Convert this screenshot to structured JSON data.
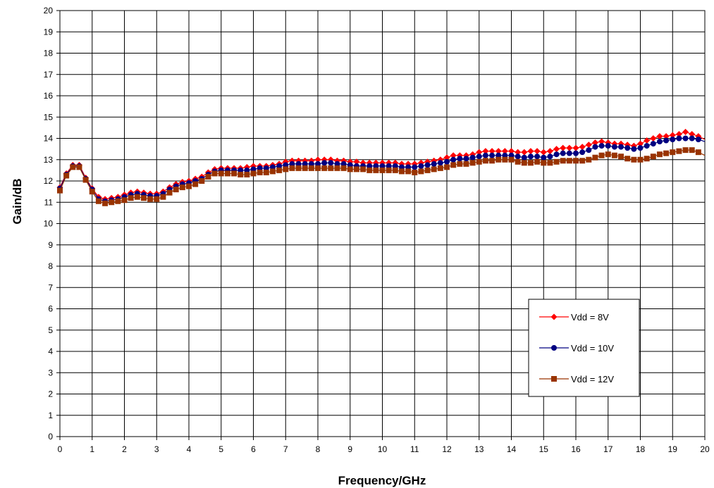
{
  "chart_data": {
    "type": "line",
    "title": "",
    "xlabel": "Frequency/GHz",
    "ylabel": "Gain/dB",
    "xlim": [
      0,
      20
    ],
    "ylim": [
      0,
      20
    ],
    "xticks": [
      0,
      1,
      2,
      3,
      4,
      5,
      6,
      7,
      8,
      9,
      10,
      11,
      12,
      13,
      14,
      15,
      16,
      17,
      18,
      19,
      20
    ],
    "yticks": [
      0,
      1,
      2,
      3,
      4,
      5,
      6,
      7,
      8,
      9,
      10,
      11,
      12,
      13,
      14,
      15,
      16,
      17,
      18,
      19,
      20
    ],
    "grid": true,
    "legend_position": "right",
    "series": [
      {
        "name": "Vdd = 8V",
        "color": "#ff0000",
        "marker": "diamond",
        "x": [
          0,
          0.2,
          0.4,
          0.6,
          0.8,
          1.0,
          1.2,
          1.4,
          1.6,
          1.8,
          2.0,
          2.2,
          2.4,
          2.6,
          2.8,
          3.0,
          3.2,
          3.4,
          3.6,
          3.8,
          4.0,
          4.2,
          4.4,
          4.6,
          4.8,
          5.0,
          5.2,
          5.4,
          5.6,
          5.8,
          6.0,
          6.2,
          6.4,
          6.6,
          6.8,
          7.0,
          7.2,
          7.4,
          7.6,
          7.8,
          8.0,
          8.2,
          8.4,
          8.6,
          8.8,
          9.0,
          9.2,
          9.4,
          9.6,
          9.8,
          10.0,
          10.2,
          10.4,
          10.6,
          10.8,
          11.0,
          11.2,
          11.4,
          11.6,
          11.8,
          12.0,
          12.2,
          12.4,
          12.6,
          12.8,
          13.0,
          13.2,
          13.4,
          13.6,
          13.8,
          14.0,
          14.2,
          14.4,
          14.6,
          14.8,
          15.0,
          15.2,
          15.4,
          15.6,
          15.8,
          16.0,
          16.2,
          16.4,
          16.6,
          16.8,
          17.0,
          17.2,
          17.4,
          17.6,
          17.8,
          18.0,
          18.2,
          18.4,
          18.6,
          18.8,
          19.0,
          19.2,
          19.4,
          19.6,
          19.8,
          20.0
        ],
        "y": [
          11.7,
          12.35,
          12.75,
          12.75,
          12.15,
          11.65,
          11.25,
          11.15,
          11.2,
          11.25,
          11.35,
          11.45,
          11.5,
          11.45,
          11.4,
          11.4,
          11.5,
          11.7,
          11.85,
          11.95,
          12.0,
          12.1,
          12.2,
          12.4,
          12.55,
          12.6,
          12.6,
          12.6,
          12.6,
          12.65,
          12.7,
          12.7,
          12.7,
          12.75,
          12.8,
          12.9,
          12.95,
          12.95,
          12.95,
          12.95,
          13.0,
          13.0,
          13.0,
          12.95,
          12.95,
          12.9,
          12.9,
          12.85,
          12.85,
          12.85,
          12.85,
          12.85,
          12.85,
          12.8,
          12.8,
          12.8,
          12.85,
          12.9,
          12.95,
          13.0,
          13.1,
          13.2,
          13.2,
          13.2,
          13.25,
          13.35,
          13.4,
          13.4,
          13.4,
          13.4,
          13.4,
          13.35,
          13.35,
          13.4,
          13.4,
          13.35,
          13.4,
          13.5,
          13.55,
          13.55,
          13.55,
          13.6,
          13.7,
          13.8,
          13.85,
          13.8,
          13.75,
          13.75,
          13.7,
          13.65,
          13.75,
          13.9,
          14.0,
          14.1,
          14.1,
          14.15,
          14.2,
          14.3,
          14.2,
          14.1,
          13.95
        ]
      },
      {
        "name": "Vdd = 10V",
        "color": "#000080",
        "marker": "circle",
        "x": [
          0,
          0.2,
          0.4,
          0.6,
          0.8,
          1.0,
          1.2,
          1.4,
          1.6,
          1.8,
          2.0,
          2.2,
          2.4,
          2.6,
          2.8,
          3.0,
          3.2,
          3.4,
          3.6,
          3.8,
          4.0,
          4.2,
          4.4,
          4.6,
          4.8,
          5.0,
          5.2,
          5.4,
          5.6,
          5.8,
          6.0,
          6.2,
          6.4,
          6.6,
          6.8,
          7.0,
          7.2,
          7.4,
          7.6,
          7.8,
          8.0,
          8.2,
          8.4,
          8.6,
          8.8,
          9.0,
          9.2,
          9.4,
          9.6,
          9.8,
          10.0,
          10.2,
          10.4,
          10.6,
          10.8,
          11.0,
          11.2,
          11.4,
          11.6,
          11.8,
          12.0,
          12.2,
          12.4,
          12.6,
          12.8,
          13.0,
          13.2,
          13.4,
          13.6,
          13.8,
          14.0,
          14.2,
          14.4,
          14.6,
          14.8,
          15.0,
          15.2,
          15.4,
          15.6,
          15.8,
          16.0,
          16.2,
          16.4,
          16.6,
          16.8,
          17.0,
          17.2,
          17.4,
          17.6,
          17.8,
          18.0,
          18.2,
          18.4,
          18.6,
          18.8,
          19.0,
          19.2,
          19.4,
          19.6,
          19.8,
          20.0
        ],
        "y": [
          11.65,
          12.3,
          12.7,
          12.7,
          12.1,
          11.6,
          11.15,
          11.05,
          11.1,
          11.15,
          11.25,
          11.35,
          11.4,
          11.35,
          11.3,
          11.3,
          11.4,
          11.6,
          11.75,
          11.85,
          11.9,
          12.0,
          12.1,
          12.3,
          12.45,
          12.5,
          12.5,
          12.5,
          12.5,
          12.5,
          12.55,
          12.6,
          12.6,
          12.65,
          12.7,
          12.75,
          12.8,
          12.8,
          12.8,
          12.8,
          12.8,
          12.85,
          12.85,
          12.8,
          12.8,
          12.75,
          12.7,
          12.7,
          12.7,
          12.7,
          12.7,
          12.7,
          12.7,
          12.65,
          12.65,
          12.65,
          12.7,
          12.75,
          12.8,
          12.85,
          12.9,
          13.0,
          13.05,
          13.05,
          13.1,
          13.15,
          13.2,
          13.2,
          13.2,
          13.2,
          13.2,
          13.15,
          13.1,
          13.15,
          13.15,
          13.1,
          13.15,
          13.25,
          13.3,
          13.3,
          13.3,
          13.35,
          13.45,
          13.6,
          13.65,
          13.65,
          13.6,
          13.6,
          13.55,
          13.5,
          13.55,
          13.65,
          13.75,
          13.85,
          13.9,
          13.95,
          14.0,
          14.0,
          14.0,
          13.95,
          13.85
        ]
      },
      {
        "name": "Vdd = 12V",
        "color": "#993300",
        "marker": "square",
        "x": [
          0,
          0.2,
          0.4,
          0.6,
          0.8,
          1.0,
          1.2,
          1.4,
          1.6,
          1.8,
          2.0,
          2.2,
          2.4,
          2.6,
          2.8,
          3.0,
          3.2,
          3.4,
          3.6,
          3.8,
          4.0,
          4.2,
          4.4,
          4.6,
          4.8,
          5.0,
          5.2,
          5.4,
          5.6,
          5.8,
          6.0,
          6.2,
          6.4,
          6.6,
          6.8,
          7.0,
          7.2,
          7.4,
          7.6,
          7.8,
          8.0,
          8.2,
          8.4,
          8.6,
          8.8,
          9.0,
          9.2,
          9.4,
          9.6,
          9.8,
          10.0,
          10.2,
          10.4,
          10.6,
          10.8,
          11.0,
          11.2,
          11.4,
          11.6,
          11.8,
          12.0,
          12.2,
          12.4,
          12.6,
          12.8,
          13.0,
          13.2,
          13.4,
          13.6,
          13.8,
          14.0,
          14.2,
          14.4,
          14.6,
          14.8,
          15.0,
          15.2,
          15.4,
          15.6,
          15.8,
          16.0,
          16.2,
          16.4,
          16.6,
          16.8,
          17.0,
          17.2,
          17.4,
          17.6,
          17.8,
          18.0,
          18.2,
          18.4,
          18.6,
          18.8,
          19.0,
          19.2,
          19.4,
          19.6,
          19.8,
          20.0
        ],
        "y": [
          11.55,
          12.25,
          12.65,
          12.65,
          12.05,
          11.5,
          11.05,
          10.95,
          11.0,
          11.05,
          11.1,
          11.2,
          11.25,
          11.2,
          11.15,
          11.15,
          11.25,
          11.45,
          11.6,
          11.7,
          11.75,
          11.85,
          12.0,
          12.2,
          12.35,
          12.35,
          12.35,
          12.35,
          12.3,
          12.3,
          12.35,
          12.4,
          12.4,
          12.45,
          12.5,
          12.55,
          12.6,
          12.6,
          12.6,
          12.6,
          12.6,
          12.6,
          12.6,
          12.6,
          12.6,
          12.55,
          12.55,
          12.55,
          12.5,
          12.5,
          12.5,
          12.5,
          12.5,
          12.45,
          12.45,
          12.4,
          12.45,
          12.5,
          12.55,
          12.6,
          12.65,
          12.75,
          12.8,
          12.8,
          12.85,
          12.9,
          12.95,
          12.95,
          13.0,
          13.0,
          13.0,
          12.9,
          12.85,
          12.85,
          12.9,
          12.85,
          12.85,
          12.9,
          12.95,
          12.95,
          12.95,
          12.95,
          13.0,
          13.1,
          13.2,
          13.25,
          13.2,
          13.15,
          13.05,
          13.0,
          13.0,
          13.05,
          13.15,
          13.25,
          13.3,
          13.35,
          13.4,
          13.45,
          13.45,
          13.35,
          13.2
        ]
      }
    ]
  }
}
